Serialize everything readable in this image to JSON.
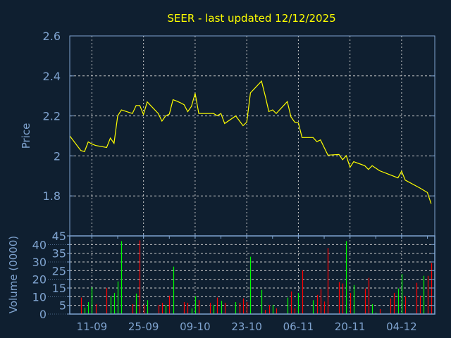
{
  "chart_data": [
    {
      "type": "line",
      "title": "SEER - last updated 12/12/2025",
      "ylabel": "Price",
      "xlabel": "",
      "year": 2025,
      "xlim": [
        "05-09",
        "13-12"
      ],
      "ylim": [
        1.6,
        2.6
      ],
      "yticks": [
        "1.8",
        "2",
        "2.2",
        "2.4",
        "2.6"
      ],
      "xticks": [
        "11-09",
        "25-09",
        "09-10",
        "23-10",
        "06-11",
        "20-11",
        "04-12"
      ],
      "grid": true,
      "colors": {
        "line": "#ffff00",
        "background": "#0f1f30",
        "axis": "#7fa3cf",
        "grid": "#c8c8c8",
        "title": "#ffff00"
      },
      "points": [
        [
          "05-09",
          2.1
        ],
        [
          "08-09",
          2.027
        ],
        [
          "09-09",
          2.021
        ],
        [
          "10-09",
          2.07
        ],
        [
          "11-09",
          2.06
        ],
        [
          "12-09",
          2.052
        ],
        [
          "15-09",
          2.042
        ],
        [
          "16-09",
          2.089
        ],
        [
          "17-09",
          2.063
        ],
        [
          "18-09",
          2.2
        ],
        [
          "19-09",
          2.23
        ],
        [
          "22-09",
          2.212
        ],
        [
          "23-09",
          2.252
        ],
        [
          "24-09",
          2.252
        ],
        [
          "25-09",
          2.207
        ],
        [
          "26-09",
          2.27
        ],
        [
          "29-09",
          2.212
        ],
        [
          "30-09",
          2.174
        ],
        [
          "01-10",
          2.2
        ],
        [
          "02-10",
          2.209
        ],
        [
          "03-10",
          2.281
        ],
        [
          "04-10",
          2.274
        ],
        [
          "05-10",
          2.266
        ],
        [
          "06-10",
          2.256
        ],
        [
          "07-10",
          2.221
        ],
        [
          "08-10",
          2.248
        ],
        [
          "09-10",
          2.313
        ],
        [
          "10-10",
          2.212
        ],
        [
          "14-10",
          2.212
        ],
        [
          "15-10",
          2.201
        ],
        [
          "16-10",
          2.212
        ],
        [
          "17-10",
          2.162
        ],
        [
          "20-10",
          2.2
        ],
        [
          "22-10",
          2.151
        ],
        [
          "23-10",
          2.169
        ],
        [
          "24-10",
          2.315
        ],
        [
          "27-10",
          2.374
        ],
        [
          "28-10",
          2.301
        ],
        [
          "29-10",
          2.222
        ],
        [
          "30-10",
          2.23
        ],
        [
          "31-10",
          2.212
        ],
        [
          "03-11",
          2.272
        ],
        [
          "04-11",
          2.195
        ],
        [
          "05-11",
          2.169
        ],
        [
          "06-11",
          2.165
        ],
        [
          "07-11",
          2.092
        ],
        [
          "10-11",
          2.092
        ],
        [
          "11-11",
          2.071
        ],
        [
          "12-11",
          2.08
        ],
        [
          "14-11",
          2.004
        ],
        [
          "17-11",
          2.007
        ],
        [
          "18-11",
          1.981
        ],
        [
          "19-11",
          2.001
        ],
        [
          "20-11",
          1.943
        ],
        [
          "21-11",
          1.971
        ],
        [
          "24-11",
          1.951
        ],
        [
          "25-11",
          1.932
        ],
        [
          "26-11",
          1.951
        ],
        [
          "28-11",
          1.926
        ],
        [
          "03-12",
          1.89
        ],
        [
          "04-12",
          1.923
        ],
        [
          "05-12",
          1.879
        ],
        [
          "09-12",
          1.839
        ],
        [
          "11-12",
          1.817
        ],
        [
          "12-12",
          1.761
        ]
      ]
    },
    {
      "type": "bar",
      "ylabel": "Volume (0000)",
      "ylim": [
        0,
        45
      ],
      "yticks": [
        "0",
        "5",
        "10",
        "15",
        "20",
        "25",
        "30",
        "35",
        "40",
        "45"
      ],
      "colors": {
        "up": "#00ff00",
        "down": "#ff0000"
      },
      "bars": [
        [
          "08-09",
          9.5,
          "down"
        ],
        [
          "09-09",
          3.7,
          "up"
        ],
        [
          "10-09",
          6.9,
          "up"
        ],
        [
          "11-09",
          15.4,
          "up"
        ],
        [
          "12-09",
          5.7,
          "down"
        ],
        [
          "15-09",
          15.1,
          "down"
        ],
        [
          "16-09",
          10.5,
          "up"
        ],
        [
          "17-09",
          12.2,
          "up"
        ],
        [
          "18-09",
          18.8,
          "up"
        ],
        [
          "19-09",
          42,
          "up"
        ],
        [
          "22-09",
          5.7,
          "down"
        ],
        [
          "23-09",
          11.8,
          "up"
        ],
        [
          "24-09",
          42.4,
          "down"
        ],
        [
          "25-09",
          5.3,
          "down"
        ],
        [
          "26-09",
          8,
          "up"
        ],
        [
          "29-09",
          5.3,
          "down"
        ],
        [
          "30-09",
          6.5,
          "down"
        ],
        [
          "01-10",
          5.3,
          "up"
        ],
        [
          "02-10",
          10.6,
          "down"
        ],
        [
          "03-10",
          27.3,
          "up"
        ],
        [
          "06-10",
          6.9,
          "down"
        ],
        [
          "07-10",
          6.5,
          "down"
        ],
        [
          "08-10",
          3.3,
          "up"
        ],
        [
          "09-10",
          10.2,
          "up"
        ],
        [
          "10-10",
          8,
          "down"
        ],
        [
          "13-10",
          6.5,
          "down"
        ],
        [
          "14-10",
          5.3,
          "up"
        ],
        [
          "15-10",
          9.5,
          "down"
        ],
        [
          "16-10",
          7.6,
          "up"
        ],
        [
          "17-10",
          6.5,
          "down"
        ],
        [
          "20-10",
          6.9,
          "up"
        ],
        [
          "21-10",
          6.5,
          "down"
        ],
        [
          "22-10",
          9,
          "down"
        ],
        [
          "23-10",
          6.9,
          "down"
        ],
        [
          "24-10",
          33,
          "up"
        ],
        [
          "27-10",
          13.9,
          "up"
        ],
        [
          "28-10",
          2.4,
          "down"
        ],
        [
          "29-10",
          5.3,
          "down"
        ],
        [
          "30-10",
          5.3,
          "up"
        ],
        [
          "31-10",
          3.3,
          "down"
        ],
        [
          "03-11",
          9.5,
          "up"
        ],
        [
          "04-11",
          13,
          "down"
        ],
        [
          "05-11",
          3.3,
          "down"
        ],
        [
          "06-11",
          12.2,
          "up"
        ],
        [
          "07-11",
          25.2,
          "down"
        ],
        [
          "10-11",
          8,
          "up"
        ],
        [
          "11-11",
          11,
          "down"
        ],
        [
          "12-11",
          14.3,
          "down"
        ],
        [
          "13-11",
          7.2,
          "down"
        ],
        [
          "14-11",
          38,
          "down"
        ],
        [
          "17-11",
          18.4,
          "down"
        ],
        [
          "18-11",
          17.6,
          "down"
        ],
        [
          "19-11",
          42,
          "up"
        ],
        [
          "20-11",
          12.2,
          "down"
        ],
        [
          "21-11",
          16.7,
          "up"
        ],
        [
          "24-11",
          14.7,
          "down"
        ],
        [
          "25-11",
          20.8,
          "down"
        ],
        [
          "26-11",
          5.7,
          "up"
        ],
        [
          "27-11",
          0.8,
          "up"
        ],
        [
          "28-11",
          2.9,
          "down"
        ],
        [
          "01-12",
          9,
          "down"
        ],
        [
          "02-12",
          12.2,
          "down"
        ],
        [
          "03-12",
          14.7,
          "up"
        ],
        [
          "04-12",
          23.1,
          "up"
        ],
        [
          "05-12",
          10.2,
          "down"
        ],
        [
          "08-12",
          18,
          "down"
        ],
        [
          "09-12",
          10.6,
          "down"
        ],
        [
          "10-12",
          22,
          "up"
        ],
        [
          "11-12",
          22,
          "down"
        ],
        [
          "12-12",
          29.4,
          "down"
        ]
      ]
    }
  ]
}
